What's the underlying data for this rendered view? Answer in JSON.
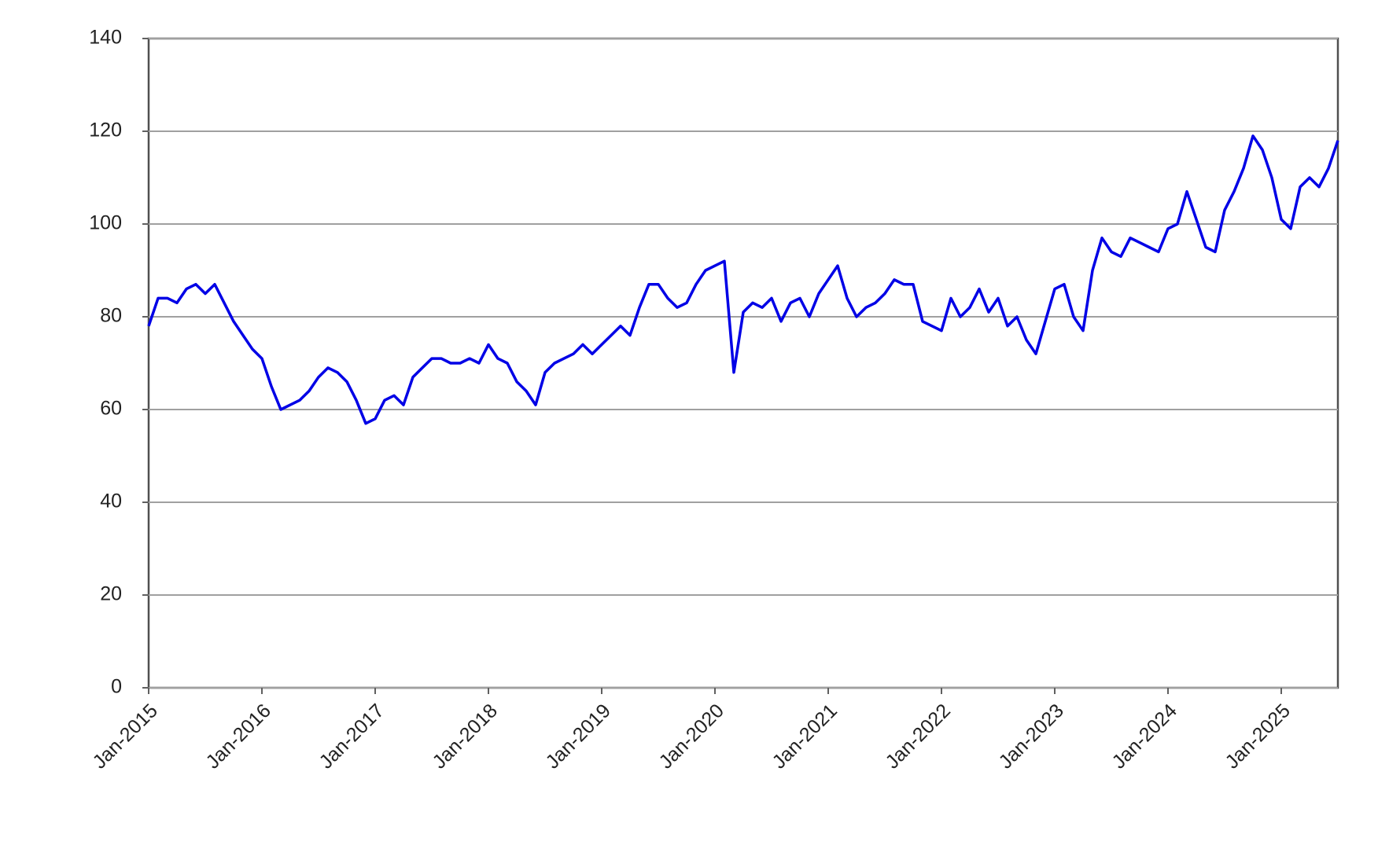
{
  "chart_data": {
    "type": "line",
    "x": [
      "2015-01",
      "2015-02",
      "2015-03",
      "2015-04",
      "2015-05",
      "2015-06",
      "2015-07",
      "2015-08",
      "2015-09",
      "2015-10",
      "2015-11",
      "2015-12",
      "2016-01",
      "2016-02",
      "2016-03",
      "2016-04",
      "2016-05",
      "2016-06",
      "2016-07",
      "2016-08",
      "2016-09",
      "2016-10",
      "2016-11",
      "2016-12",
      "2017-01",
      "2017-02",
      "2017-03",
      "2017-04",
      "2017-05",
      "2017-06",
      "2017-07",
      "2017-08",
      "2017-09",
      "2017-10",
      "2017-11",
      "2017-12",
      "2018-01",
      "2018-02",
      "2018-03",
      "2018-04",
      "2018-05",
      "2018-06",
      "2018-07",
      "2018-08",
      "2018-09",
      "2018-10",
      "2018-11",
      "2018-12",
      "2019-01",
      "2019-02",
      "2019-03",
      "2019-04",
      "2019-05",
      "2019-06",
      "2019-07",
      "2019-08",
      "2019-09",
      "2019-10",
      "2019-11",
      "2019-12",
      "2020-01",
      "2020-02",
      "2020-03",
      "2020-04",
      "2020-05",
      "2020-06",
      "2020-07",
      "2020-08",
      "2020-09",
      "2020-10",
      "2020-11",
      "2020-12",
      "2021-01",
      "2021-02",
      "2021-03",
      "2021-04",
      "2021-05",
      "2021-06",
      "2021-07",
      "2021-08",
      "2021-09",
      "2021-10",
      "2021-11",
      "2021-12",
      "2022-01",
      "2022-02",
      "2022-03",
      "2022-04",
      "2022-05",
      "2022-06",
      "2022-07",
      "2022-08",
      "2022-09",
      "2022-10",
      "2022-11",
      "2022-12",
      "2023-01",
      "2023-02",
      "2023-03",
      "2023-04",
      "2023-05",
      "2023-06",
      "2023-07",
      "2023-08",
      "2023-09",
      "2023-10",
      "2023-11",
      "2023-12",
      "2024-01",
      "2024-02",
      "2024-03",
      "2024-04",
      "2024-05",
      "2024-06",
      "2024-07",
      "2024-08",
      "2024-09",
      "2024-10",
      "2024-11",
      "2024-12",
      "2025-01",
      "2025-02",
      "2025-03",
      "2025-04",
      "2025-05",
      "2025-06",
      "2025-07"
    ],
    "series": [
      {
        "color": "#0000e6",
        "values": [
          78,
          84,
          84,
          83,
          86,
          87,
          85,
          87,
          83,
          79,
          76,
          73,
          71,
          65,
          60,
          61,
          62,
          64,
          67,
          69,
          68,
          66,
          62,
          57,
          58,
          62,
          63,
          61,
          67,
          69,
          71,
          71,
          70,
          70,
          71,
          70,
          74,
          71,
          70,
          66,
          64,
          61,
          68,
          70,
          71,
          72,
          74,
          72,
          74,
          76,
          78,
          76,
          82,
          87,
          87,
          84,
          82,
          83,
          87,
          90,
          91,
          92,
          68,
          81,
          83,
          82,
          84,
          79,
          83,
          84,
          80,
          85,
          88,
          91,
          84,
          80,
          82,
          83,
          85,
          88,
          87,
          87,
          79,
          78,
          77,
          84,
          80,
          82,
          86,
          81,
          84,
          78,
          80,
          75,
          72,
          79,
          86,
          87,
          80,
          77,
          90,
          97,
          94,
          93,
          97,
          96,
          95,
          94,
          99,
          100,
          107,
          101,
          95,
          94,
          103,
          107,
          112,
          119,
          116,
          110,
          101,
          99,
          108,
          110,
          108,
          112,
          118
        ]
      }
    ],
    "xlim": [
      "2015-01",
      "2025-07"
    ],
    "xticks": [
      {
        "value": "2015-01",
        "label": "Jan-2015"
      },
      {
        "value": "2016-01",
        "label": "Jan-2016"
      },
      {
        "value": "2017-01",
        "label": "Jan-2017"
      },
      {
        "value": "2018-01",
        "label": "Jan-2018"
      },
      {
        "value": "2019-01",
        "label": "Jan-2019"
      },
      {
        "value": "2020-01",
        "label": "Jan-2020"
      },
      {
        "value": "2021-01",
        "label": "Jan-2021"
      },
      {
        "value": "2022-01",
        "label": "Jan-2022"
      },
      {
        "value": "2023-01",
        "label": "Jan-2023"
      },
      {
        "value": "2024-01",
        "label": "Jan-2024"
      },
      {
        "value": "2025-01",
        "label": "Jan-2025"
      }
    ],
    "ylim": [
      0,
      140
    ],
    "yticks": [
      0,
      20,
      40,
      60,
      80,
      100,
      120,
      140
    ],
    "grid": true
  }
}
